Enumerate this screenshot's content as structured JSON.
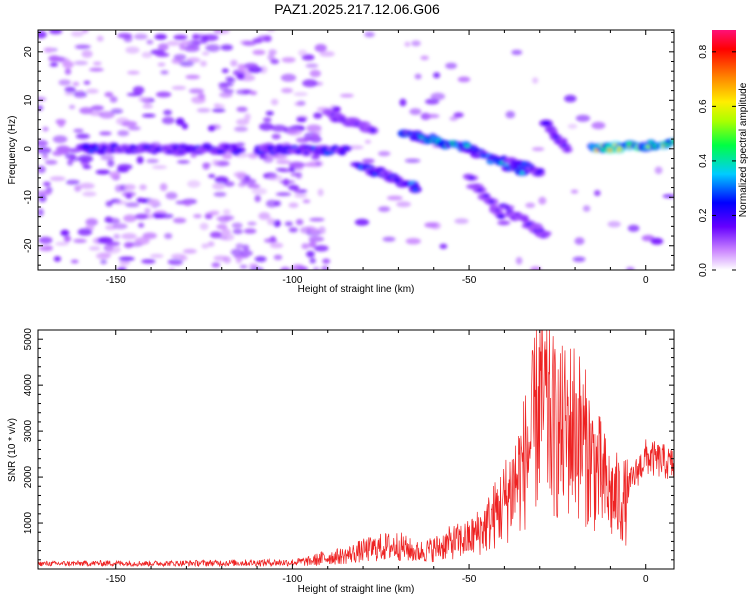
{
  "title": "PAZ1.2025.217.12.06.G06",
  "chart_data": [
    {
      "type": "heatmap",
      "xlabel": "Height of straight line (km)",
      "ylabel": "Frequency (Hz)",
      "xlim": [
        -172,
        8
      ],
      "ylim": [
        -25,
        24.5
      ],
      "xticks": [
        -150,
        -100,
        -50,
        0
      ],
      "yticks": [
        -20,
        -10,
        0,
        10,
        20
      ],
      "colorbar": {
        "label": "Normalized spectral amplitude",
        "range": [
          0,
          0.88
        ],
        "ticks": [
          0.0,
          0.2,
          0.4,
          0.6,
          0.8
        ]
      },
      "bands": [
        {
          "x": [
            -160,
            -115
          ],
          "f": [
            0,
            0
          ],
          "amp": 0.3
        },
        {
          "x": [
            -110,
            -85
          ],
          "f": [
            0,
            -0.5
          ],
          "amp": 0.3
        },
        {
          "x": [
            -90,
            -77
          ],
          "f": [
            7,
            4
          ],
          "amp": 0.2
        },
        {
          "x": [
            -82,
            -65
          ],
          "f": [
            -3,
            -8
          ],
          "amp": 0.35
        },
        {
          "x": [
            -68,
            -48
          ],
          "f": [
            3,
            0
          ],
          "amp": 0.45
        },
        {
          "x": [
            -50,
            -35
          ],
          "f": [
            0,
            -5
          ],
          "amp": 0.4
        },
        {
          "x": [
            -40,
            -30
          ],
          "f": [
            -2,
            -5
          ],
          "amp": 0.3
        },
        {
          "x": [
            -50,
            -40
          ],
          "f": [
            -6,
            -15
          ],
          "amp": 0.2
        },
        {
          "x": [
            -40,
            -28
          ],
          "f": [
            -12,
            -18
          ],
          "amp": 0.2
        },
        {
          "x": [
            -28,
            -22
          ],
          "f": [
            5,
            0
          ],
          "amp": 0.25
        },
        {
          "x": [
            -15,
            8
          ],
          "f": [
            0,
            1
          ],
          "amp": 0.7
        }
      ],
      "colors": {
        "low": "#e8d8ff",
        "mid": "#5a0ee0",
        "high": "#ff1060"
      }
    },
    {
      "type": "line",
      "xlabel": "Height of straight line (km)",
      "ylabel": "SNR (10 * v/v)",
      "xlim": [
        -172,
        8
      ],
      "ylim": [
        0,
        5200
      ],
      "xticks": [
        -150,
        -100,
        -50,
        0
      ],
      "yticks": [
        1000,
        2000,
        3000,
        4000,
        5000
      ],
      "series": [
        {
          "color": "#ee2222",
          "x": [
            -172,
            -160,
            -150,
            -140,
            -130,
            -120,
            -110,
            -100,
            -95,
            -90,
            -85,
            -80,
            -75,
            -70,
            -65,
            -60,
            -55,
            -50,
            -45,
            -40,
            -35,
            -32,
            -30,
            -25,
            -20,
            -15,
            -10,
            -5,
            0,
            5,
            8
          ],
          "y": [
            100,
            110,
            120,
            110,
            120,
            130,
            140,
            150,
            200,
            350,
            400,
            550,
            650,
            700,
            500,
            600,
            800,
            900,
            1300,
            2000,
            3000,
            4000,
            5200,
            4000,
            4300,
            3200,
            2200,
            2000,
            2700,
            2600,
            2500
          ]
        }
      ]
    }
  ]
}
